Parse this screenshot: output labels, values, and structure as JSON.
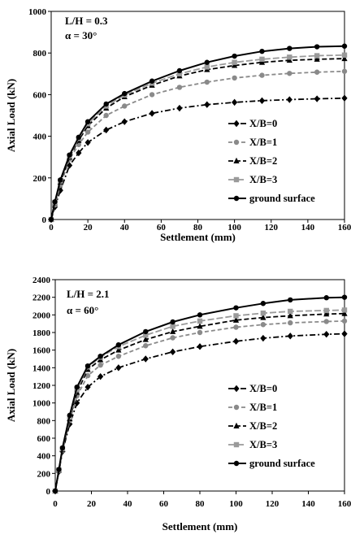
{
  "chart_data": [
    {
      "type": "line",
      "title": "",
      "annotations": [
        "L/H = 0.3",
        "α = 30°"
      ],
      "xlabel": "Settlement (mm)",
      "ylabel": "Axial Load (kN)",
      "xlim": [
        0,
        160
      ],
      "ylim": [
        0,
        1000
      ],
      "xticks": [
        0,
        20,
        40,
        60,
        80,
        100,
        120,
        140,
        160
      ],
      "yticks": [
        0,
        200,
        400,
        600,
        800,
        1000
      ],
      "grid": false,
      "legend_position": "bottom-right",
      "series": [
        {
          "name": "X/B=0",
          "color": "#000000",
          "marker": "diamond",
          "dash": "7 3 2 3",
          "x": [
            0,
            2,
            5,
            10,
            15,
            20,
            30,
            40,
            55,
            70,
            85,
            100,
            115,
            130,
            145,
            160
          ],
          "y": [
            0,
            60,
            140,
            260,
            320,
            370,
            430,
            470,
            510,
            535,
            552,
            563,
            571,
            576,
            580,
            583
          ]
        },
        {
          "name": "X/B=1",
          "color": "#8a8a8a",
          "marker": "circle",
          "dash": "5 3",
          "x": [
            0,
            2,
            5,
            10,
            15,
            20,
            30,
            40,
            55,
            70,
            85,
            100,
            115,
            130,
            145,
            160
          ],
          "y": [
            0,
            70,
            165,
            290,
            360,
            420,
            500,
            545,
            600,
            635,
            660,
            680,
            693,
            702,
            708,
            712
          ]
        },
        {
          "name": "X/B=2",
          "color": "#000000",
          "marker": "triangle",
          "dash": "6 3",
          "x": [
            0,
            2,
            5,
            10,
            15,
            20,
            30,
            40,
            55,
            70,
            85,
            100,
            115,
            130,
            145,
            160
          ],
          "y": [
            0,
            80,
            180,
            300,
            380,
            450,
            535,
            590,
            645,
            690,
            720,
            740,
            755,
            765,
            770,
            773
          ]
        },
        {
          "name": "X/B=3",
          "color": "#9a9a9a",
          "marker": "square",
          "dash": "8 3",
          "x": [
            0,
            2,
            5,
            10,
            15,
            20,
            30,
            40,
            55,
            70,
            85,
            100,
            115,
            130,
            145,
            160
          ],
          "y": [
            0,
            82,
            185,
            305,
            390,
            460,
            545,
            598,
            655,
            700,
            733,
            755,
            770,
            780,
            787,
            790
          ]
        },
        {
          "name": "ground surface",
          "color": "#000000",
          "marker": "circle",
          "dash": "",
          "x": [
            0,
            2,
            5,
            10,
            15,
            20,
            30,
            40,
            55,
            70,
            85,
            100,
            115,
            130,
            145,
            160
          ],
          "y": [
            0,
            85,
            190,
            310,
            395,
            470,
            555,
            605,
            665,
            715,
            755,
            785,
            808,
            822,
            830,
            833
          ]
        }
      ]
    },
    {
      "type": "line",
      "title": "",
      "annotations": [
        "L/H = 2.1",
        "α = 60°"
      ],
      "xlabel": "Settlement (mm)",
      "ylabel": "Axial Load (kN)",
      "xlim": [
        0,
        160
      ],
      "ylim": [
        0,
        2400
      ],
      "xticks": [
        0,
        20,
        40,
        60,
        80,
        100,
        120,
        140,
        160
      ],
      "yticks": [
        0,
        200,
        400,
        600,
        800,
        1000,
        1200,
        1400,
        1600,
        1800,
        2000,
        2200,
        2400
      ],
      "grid": false,
      "legend_position": "bottom-right",
      "series": [
        {
          "name": "X/B=0",
          "color": "#000000",
          "marker": "diamond",
          "dash": "7 3 2 3",
          "x": [
            0,
            2,
            4,
            8,
            12,
            18,
            25,
            35,
            50,
            65,
            80,
            100,
            115,
            130,
            150,
            160
          ],
          "y": [
            0,
            220,
            450,
            760,
            1000,
            1180,
            1300,
            1400,
            1500,
            1580,
            1640,
            1700,
            1735,
            1760,
            1780,
            1785
          ]
        },
        {
          "name": "X/B=1",
          "color": "#8a8a8a",
          "marker": "circle",
          "dash": "5 3",
          "x": [
            0,
            2,
            4,
            8,
            12,
            18,
            25,
            35,
            50,
            65,
            80,
            100,
            115,
            130,
            150,
            160
          ],
          "y": [
            0,
            230,
            460,
            800,
            1080,
            1310,
            1430,
            1530,
            1650,
            1740,
            1800,
            1860,
            1890,
            1910,
            1925,
            1930
          ]
        },
        {
          "name": "X/B=2",
          "color": "#000000",
          "marker": "triangle",
          "dash": "6 3",
          "x": [
            0,
            2,
            4,
            8,
            12,
            18,
            25,
            35,
            50,
            65,
            80,
            100,
            115,
            130,
            150,
            160
          ],
          "y": [
            0,
            235,
            470,
            820,
            1120,
            1380,
            1490,
            1600,
            1720,
            1810,
            1870,
            1940,
            1970,
            1990,
            2010,
            2015
          ]
        },
        {
          "name": "X/B=3",
          "color": "#9a9a9a",
          "marker": "square",
          "dash": "8 3",
          "x": [
            0,
            2,
            4,
            8,
            12,
            18,
            25,
            35,
            50,
            65,
            80,
            100,
            115,
            130,
            150,
            160
          ],
          "y": [
            0,
            240,
            480,
            840,
            1150,
            1410,
            1520,
            1640,
            1770,
            1870,
            1930,
            1990,
            2020,
            2040,
            2050,
            2055
          ]
        },
        {
          "name": "ground surface",
          "color": "#000000",
          "marker": "circle",
          "dash": "",
          "x": [
            0,
            2,
            4,
            8,
            12,
            18,
            25,
            35,
            50,
            65,
            80,
            100,
            115,
            130,
            150,
            160
          ],
          "y": [
            0,
            245,
            490,
            860,
            1180,
            1420,
            1530,
            1660,
            1810,
            1920,
            2000,
            2080,
            2130,
            2170,
            2195,
            2200
          ]
        }
      ]
    }
  ]
}
